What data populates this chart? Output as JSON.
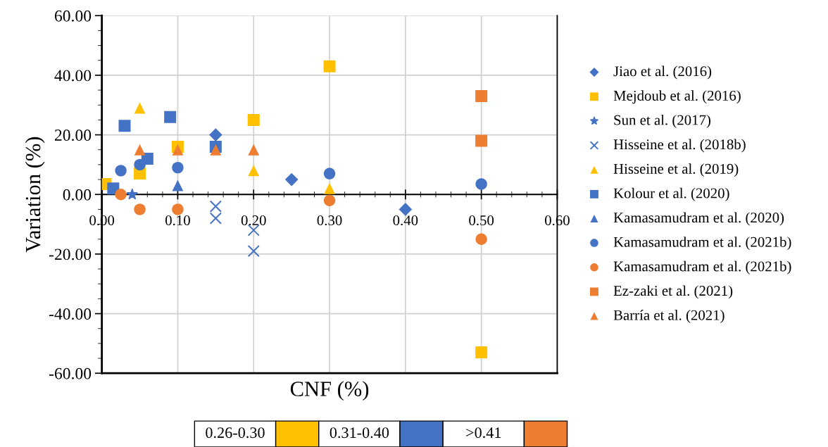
{
  "chart_data": {
    "type": "scatter",
    "xlabel": "CNF (%)",
    "ylabel": "Variation (%)",
    "xlim": [
      0,
      0.6
    ],
    "ylim": [
      -60,
      60
    ],
    "xticks": [
      {
        "value": 0,
        "label": "0.00"
      },
      {
        "value": 0.1,
        "label": "0.10"
      },
      {
        "value": 0.2,
        "label": "0.20"
      },
      {
        "value": 0.3,
        "label": "0.30"
      },
      {
        "value": 0.4,
        "label": "0.40"
      },
      {
        "value": 0.5,
        "label": "0.50"
      },
      {
        "value": 0.6,
        "label": "0.60"
      }
    ],
    "yticks": [
      {
        "value": -60,
        "label": "-60.00"
      },
      {
        "value": -40,
        "label": "-40.00"
      },
      {
        "value": -20,
        "label": "-20.00"
      },
      {
        "value": 0,
        "label": "0.00"
      },
      {
        "value": 20,
        "label": "20.00"
      },
      {
        "value": 40,
        "label": "40.00"
      },
      {
        "value": 60,
        "label": "60.00"
      }
    ],
    "grid": true,
    "legend": "right",
    "series": [
      {
        "name": "Jiao et al. (2016)",
        "color": "#4472c4",
        "marker": "diamond",
        "x": [
          0.15,
          0.25,
          0.4
        ],
        "values": [
          20,
          5,
          -5
        ]
      },
      {
        "name": "Mejdoub et al. (2016)",
        "color": "#ffc000",
        "marker": "square",
        "x": [
          0.005,
          0.05,
          0.1,
          0.2,
          0.3,
          0.5
        ],
        "values": [
          3.5,
          7,
          16,
          25,
          43,
          -53
        ]
      },
      {
        "name": "Sun et al. (2017)",
        "color": "#4472c4",
        "marker": "star",
        "x": [
          0.04
        ],
        "values": [
          0
        ]
      },
      {
        "name": "Hisseine et al. (2018b)",
        "color": "#4472c4",
        "marker": "cross",
        "x": [
          0.15,
          0.15,
          0.2,
          0.2
        ],
        "values": [
          -4,
          -8,
          -12,
          -19
        ]
      },
      {
        "name": "Hisseine et al. (2019)",
        "color": "#ffc000",
        "marker": "triangle",
        "x": [
          0.05,
          0.2,
          0.3
        ],
        "values": [
          29,
          8,
          2
        ]
      },
      {
        "name": "Kolour et al. (2020)",
        "color": "#4472c4",
        "marker": "square",
        "x": [
          0.015,
          0.03,
          0.06,
          0.09,
          0.15
        ],
        "values": [
          2,
          23,
          12,
          26,
          16
        ]
      },
      {
        "name": "Kamasamudram et al. (2020)",
        "color": "#4472c4",
        "marker": "triangle",
        "x": [
          0.1
        ],
        "values": [
          3
        ]
      },
      {
        "name": "Kamasamudram et al. (2021b)",
        "color": "#4472c4",
        "marker": "circle",
        "x": [
          0.025,
          0.05,
          0.1,
          0.3,
          0.5
        ],
        "values": [
          8,
          10,
          9,
          7,
          3.5
        ]
      },
      {
        "name": "Kamasamudram et al. (2021b)",
        "color": "#ed7d31",
        "marker": "circle",
        "x": [
          0.025,
          0.05,
          0.1,
          0.3,
          0.5
        ],
        "values": [
          0,
          -5,
          -5,
          -2,
          -15
        ]
      },
      {
        "name": "Ez-zaki et al. (2021)",
        "color": "#ed7d31",
        "marker": "square",
        "x": [
          0.5,
          0.5
        ],
        "values": [
          33,
          18
        ]
      },
      {
        "name": "Barría et al. (2021)",
        "color": "#ed7d31",
        "marker": "triangle",
        "x": [
          0.05,
          0.1,
          0.15,
          0.2
        ],
        "values": [
          15,
          15,
          15,
          15
        ]
      }
    ],
    "annotations": [
      "0.26-0.30",
      "0.31-0.40",
      ">0.41"
    ]
  }
}
